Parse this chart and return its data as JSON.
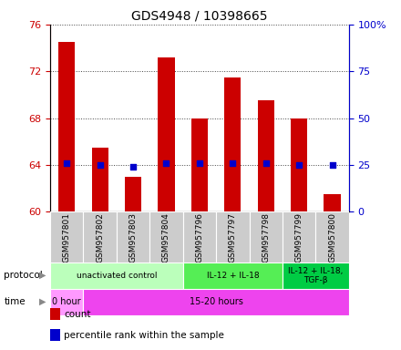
{
  "title": "GDS4948 / 10398665",
  "samples": [
    "GSM957801",
    "GSM957802",
    "GSM957803",
    "GSM957804",
    "GSM957796",
    "GSM957797",
    "GSM957798",
    "GSM957799",
    "GSM957800"
  ],
  "bar_bottoms": [
    60,
    60,
    60,
    60,
    60,
    60,
    60,
    60,
    60
  ],
  "bar_tops": [
    74.5,
    65.5,
    63.0,
    73.2,
    68.0,
    71.5,
    69.5,
    68.0,
    61.5
  ],
  "percentile_ranks": [
    26,
    25,
    24,
    26,
    26,
    26,
    26,
    25,
    25
  ],
  "ylim_left": [
    60,
    76
  ],
  "ylim_right": [
    0,
    100
  ],
  "yticks_left": [
    60,
    64,
    68,
    72,
    76
  ],
  "yticks_right": [
    0,
    25,
    50,
    75,
    100
  ],
  "ytick_labels_right": [
    "0",
    "25",
    "50",
    "75",
    "100%"
  ],
  "bar_color": "#cc0000",
  "percentile_color": "#0000cc",
  "grid_color": "#000000",
  "bg_color": "#ffffff",
  "sample_box_color": "#cccccc",
  "protocol_groups": [
    {
      "label": "unactivated control",
      "start": 0,
      "end": 4,
      "color": "#bbffbb"
    },
    {
      "label": "IL-12 + IL-18",
      "start": 4,
      "end": 7,
      "color": "#55ee55"
    },
    {
      "label": "IL-12 + IL-18,\nTGF-β",
      "start": 7,
      "end": 9,
      "color": "#00cc44"
    }
  ],
  "time_groups": [
    {
      "label": "0 hour",
      "start": 0,
      "end": 1,
      "color": "#ff99ff"
    },
    {
      "label": "15-20 hours",
      "start": 1,
      "end": 9,
      "color": "#ee44ee"
    }
  ],
  "legend_count_label": "count",
  "legend_percentile_label": "percentile rank within the sample",
  "left_axis_color": "#cc0000",
  "right_axis_color": "#0000cc",
  "protocol_label": "protocol",
  "time_label": "time"
}
